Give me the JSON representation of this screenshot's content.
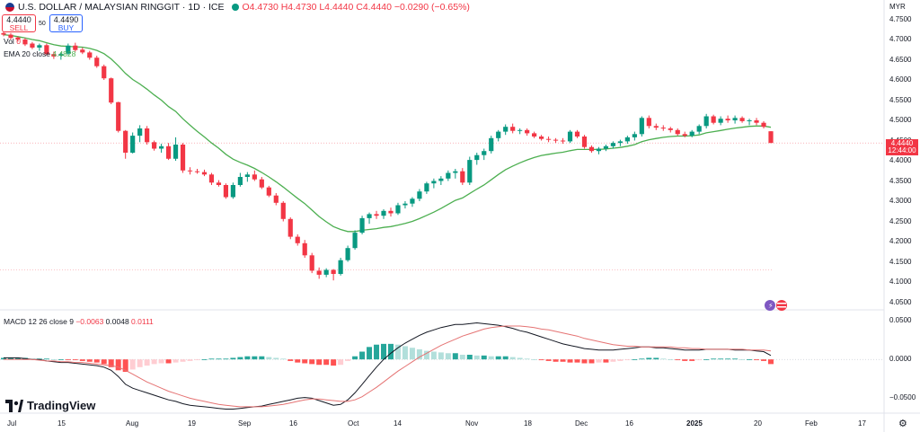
{
  "header": {
    "symbol_title": "U.S. DOLLAR / MALAYSIAN RINGGIT · 1D · ICE",
    "open": "O4.4730",
    "high": "H4.4730",
    "low": "L4.4440",
    "close": "C4.4440",
    "change": "−0.0290 (−0.65%)"
  },
  "trade": {
    "sell_price": "4.4440",
    "sell_label": "SELL",
    "spread": "50",
    "buy_price": "4.4490",
    "buy_label": "BUY"
  },
  "indicators": {
    "vol_label": "Vol",
    "vol_value": "0",
    "ema_label": "EMA 20 close",
    "ema_value": "4.4828",
    "macd_label": "MACD 12 26 close 9",
    "macd_hist": "−0.0063",
    "macd_line": "0.0048",
    "macd_signal": "0.0111"
  },
  "price_axis": {
    "currency": "MYR",
    "ticks": [
      "4.7500",
      "4.7000",
      "4.6500",
      "4.6000",
      "4.5500",
      "4.5000",
      "4.4500",
      "4.4000",
      "4.3500",
      "4.3000",
      "4.2500",
      "4.2000",
      "4.1500",
      "4.1000",
      "4.0500"
    ],
    "last_price": "4.4440",
    "countdown": "12:44:00"
  },
  "macd_axis": {
    "ticks": [
      "0.0500",
      "0.0000",
      "−0.0500"
    ]
  },
  "time_axis": {
    "labels": [
      "Jul",
      "15",
      "Aug",
      "19",
      "Sep",
      "16",
      "Oct",
      "14",
      "Nov",
      "18",
      "Dec",
      "16",
      "2025",
      "20",
      "Feb",
      "17"
    ]
  },
  "brand": {
    "name": "TradingView"
  },
  "colors": {
    "up": "#089981",
    "down": "#f23645",
    "ema": "#4caf50",
    "macd": "#131722",
    "signal": "#e57373"
  },
  "chart_data": {
    "type": "candlestick",
    "symbol": "USDMYR",
    "interval": "1D",
    "ylim": [
      4.04,
      4.76
    ],
    "candles": [
      [
        4.716,
        4.722,
        4.708,
        4.712
      ],
      [
        4.712,
        4.716,
        4.7,
        4.704
      ],
      [
        4.705,
        4.708,
        4.695,
        4.7
      ],
      [
        4.7,
        4.704,
        4.684,
        4.688
      ],
      [
        4.69,
        4.694,
        4.676,
        4.68
      ],
      [
        4.68,
        4.69,
        4.672,
        4.686
      ],
      [
        4.686,
        4.69,
        4.66,
        4.664
      ],
      [
        4.664,
        4.67,
        4.652,
        4.658
      ],
      [
        4.66,
        4.668,
        4.65,
        4.664
      ],
      [
        4.665,
        4.69,
        4.662,
        4.685
      ],
      [
        4.685,
        4.692,
        4.67,
        4.674
      ],
      [
        4.675,
        4.68,
        4.664,
        4.668
      ],
      [
        4.668,
        4.672,
        4.65,
        4.655
      ],
      [
        4.655,
        4.66,
        4.63,
        4.634
      ],
      [
        4.634,
        4.638,
        4.6,
        4.604
      ],
      [
        4.604,
        4.606,
        4.54,
        4.544
      ],
      [
        4.545,
        4.546,
        4.47,
        4.474
      ],
      [
        4.474,
        4.476,
        4.405,
        4.42
      ],
      [
        4.42,
        4.47,
        4.418,
        4.462
      ],
      [
        4.462,
        4.488,
        4.446,
        4.48
      ],
      [
        4.48,
        4.486,
        4.44,
        4.446
      ],
      [
        4.446,
        4.45,
        4.425,
        4.43
      ],
      [
        4.43,
        4.442,
        4.42,
        4.436
      ],
      [
        4.436,
        4.444,
        4.402,
        4.405
      ],
      [
        4.405,
        4.458,
        4.4,
        4.44
      ],
      [
        4.44,
        4.444,
        4.37,
        4.376
      ],
      [
        4.376,
        4.384,
        4.366,
        4.374
      ],
      [
        4.374,
        4.38,
        4.368,
        4.372
      ],
      [
        4.372,
        4.378,
        4.362,
        4.366
      ],
      [
        4.366,
        4.37,
        4.34,
        4.346
      ],
      [
        4.346,
        4.352,
        4.336,
        4.34
      ],
      [
        4.34,
        4.344,
        4.306,
        4.31
      ],
      [
        4.31,
        4.346,
        4.306,
        4.34
      ],
      [
        4.34,
        4.37,
        4.336,
        4.36
      ],
      [
        4.36,
        4.372,
        4.348,
        4.366
      ],
      [
        4.366,
        4.376,
        4.35,
        4.354
      ],
      [
        4.354,
        4.36,
        4.33,
        4.334
      ],
      [
        4.334,
        4.338,
        4.31,
        4.314
      ],
      [
        4.314,
        4.32,
        4.29,
        4.296
      ],
      [
        4.296,
        4.3,
        4.25,
        4.256
      ],
      [
        4.256,
        4.26,
        4.206,
        4.212
      ],
      [
        4.212,
        4.218,
        4.19,
        4.196
      ],
      [
        4.196,
        4.204,
        4.16,
        4.166
      ],
      [
        4.166,
        4.172,
        4.122,
        4.128
      ],
      [
        4.128,
        4.136,
        4.108,
        4.118
      ],
      [
        4.118,
        4.134,
        4.112,
        4.13
      ],
      [
        4.13,
        4.132,
        4.104,
        4.12
      ],
      [
        4.12,
        4.16,
        4.116,
        4.154
      ],
      [
        4.154,
        4.19,
        4.15,
        4.184
      ],
      [
        4.184,
        4.228,
        4.18,
        4.222
      ],
      [
        4.222,
        4.264,
        4.218,
        4.258
      ],
      [
        4.258,
        4.272,
        4.244,
        4.268
      ],
      [
        4.268,
        4.276,
        4.256,
        4.264
      ],
      [
        4.264,
        4.28,
        4.256,
        4.276
      ],
      [
        4.276,
        4.284,
        4.262,
        4.27
      ],
      [
        4.27,
        4.296,
        4.266,
        4.29
      ],
      [
        4.29,
        4.3,
        4.282,
        4.294
      ],
      [
        4.294,
        4.31,
        4.286,
        4.306
      ],
      [
        4.306,
        4.33,
        4.3,
        4.324
      ],
      [
        4.324,
        4.348,
        4.318,
        4.344
      ],
      [
        4.344,
        4.356,
        4.332,
        4.35
      ],
      [
        4.35,
        4.362,
        4.34,
        4.356
      ],
      [
        4.356,
        4.376,
        4.35,
        4.37
      ],
      [
        4.37,
        4.38,
        4.356,
        4.374
      ],
      [
        4.374,
        4.382,
        4.34,
        4.346
      ],
      [
        4.346,
        4.41,
        4.34,
        4.402
      ],
      [
        4.402,
        4.42,
        4.39,
        4.414
      ],
      [
        4.414,
        4.43,
        4.402,
        4.424
      ],
      [
        4.424,
        4.462,
        4.418,
        4.456
      ],
      [
        4.456,
        4.476,
        4.448,
        4.472
      ],
      [
        4.472,
        4.49,
        4.464,
        4.484
      ],
      [
        4.484,
        4.492,
        4.468,
        4.474
      ],
      [
        4.474,
        4.48,
        4.466,
        4.476
      ],
      [
        4.476,
        4.48,
        4.462,
        4.468
      ],
      [
        4.468,
        4.472,
        4.456,
        4.46
      ],
      [
        4.46,
        4.464,
        4.45,
        4.454
      ],
      [
        4.454,
        4.46,
        4.446,
        4.452
      ],
      [
        4.452,
        4.456,
        4.444,
        4.45
      ],
      [
        4.45,
        4.456,
        4.442,
        4.448
      ],
      [
        4.448,
        4.476,
        4.444,
        4.472
      ],
      [
        4.472,
        4.476,
        4.456,
        4.46
      ],
      [
        4.46,
        4.464,
        4.43,
        4.434
      ],
      [
        4.434,
        4.438,
        4.42,
        4.424
      ],
      [
        4.424,
        4.434,
        4.416,
        4.43
      ],
      [
        4.43,
        4.44,
        4.424,
        4.436
      ],
      [
        4.436,
        4.448,
        4.43,
        4.444
      ],
      [
        4.444,
        4.452,
        4.436,
        4.448
      ],
      [
        4.448,
        4.462,
        4.442,
        4.458
      ],
      [
        4.458,
        4.472,
        4.45,
        4.466
      ],
      [
        4.466,
        4.51,
        4.46,
        4.506
      ],
      [
        4.506,
        4.512,
        4.48,
        4.486
      ],
      [
        4.486,
        4.492,
        4.476,
        4.482
      ],
      [
        4.482,
        4.488,
        4.474,
        4.48
      ],
      [
        4.48,
        4.484,
        4.47,
        4.476
      ],
      [
        4.476,
        4.48,
        4.462,
        4.466
      ],
      [
        4.466,
        4.472,
        4.458,
        4.462
      ],
      [
        4.462,
        4.476,
        4.458,
        4.472
      ],
      [
        4.472,
        4.49,
        4.466,
        4.486
      ],
      [
        4.486,
        4.516,
        4.48,
        4.51
      ],
      [
        4.51,
        4.514,
        4.49,
        4.494
      ],
      [
        4.494,
        4.51,
        4.488,
        4.504
      ],
      [
        4.504,
        4.512,
        4.494,
        4.5
      ],
      [
        4.5,
        4.512,
        4.492,
        4.506
      ],
      [
        4.506,
        4.51,
        4.494,
        4.498
      ],
      [
        4.498,
        4.504,
        4.488,
        4.5
      ],
      [
        4.5,
        4.506,
        4.488,
        4.494
      ],
      [
        4.494,
        4.498,
        4.48,
        4.484
      ],
      [
        4.473,
        4.473,
        4.444,
        4.444
      ]
    ],
    "ema20": [
      4.712,
      4.71,
      4.707,
      4.704,
      4.7,
      4.697,
      4.692,
      4.687,
      4.684,
      4.683,
      4.682,
      4.681,
      4.678,
      4.673,
      4.665,
      4.652,
      4.635,
      4.616,
      4.601,
      4.59,
      4.577,
      4.563,
      4.55,
      4.534,
      4.522,
      4.504,
      4.488,
      4.473,
      4.459,
      4.444,
      4.431,
      4.416,
      4.404,
      4.396,
      4.389,
      4.381,
      4.371,
      4.36,
      4.348,
      4.335,
      4.321,
      4.307,
      4.294,
      4.278,
      4.262,
      4.249,
      4.237,
      4.23,
      4.225,
      4.225,
      4.228,
      4.23,
      4.232,
      4.235,
      4.237,
      4.241,
      4.245,
      4.25,
      4.257,
      4.265,
      4.273,
      4.282,
      4.292,
      4.302,
      4.308,
      4.319,
      4.33,
      4.34,
      4.353,
      4.366,
      4.378,
      4.387,
      4.395,
      4.402,
      4.408,
      4.413,
      4.416,
      4.419,
      4.421,
      4.425,
      4.428,
      4.428,
      4.428,
      4.428,
      4.429,
      4.431,
      4.433,
      4.436,
      4.44,
      4.447,
      4.452,
      4.455,
      4.458,
      4.46,
      4.461,
      4.461,
      4.462,
      4.464,
      4.469,
      4.472,
      4.475,
      4.478,
      4.481,
      4.483,
      4.485,
      4.486,
      4.486,
      4.483
    ],
    "macd_ylim": [
      -0.068,
      0.058
    ],
    "macd_hist": [
      0.002,
      0.002,
      0.002,
      0.002,
      0.001,
      0.001,
      0.001,
      0.0,
      0.0,
      -0.001,
      -0.001,
      -0.002,
      -0.003,
      -0.004,
      -0.006,
      -0.01,
      -0.014,
      -0.016,
      -0.013,
      -0.01,
      -0.008,
      -0.006,
      -0.005,
      -0.005,
      -0.004,
      -0.003,
      -0.002,
      -0.001,
      0.0,
      0.001,
      0.001,
      0.001,
      0.002,
      0.003,
      0.004,
      0.004,
      0.004,
      0.003,
      0.002,
      0.001,
      -0.002,
      -0.004,
      -0.005,
      -0.006,
      -0.007,
      -0.007,
      -0.008,
      -0.007,
      -0.002,
      0.004,
      0.01,
      0.016,
      0.019,
      0.02,
      0.02,
      0.019,
      0.017,
      0.015,
      0.013,
      0.011,
      0.01,
      0.009,
      0.008,
      0.008,
      0.006,
      0.006,
      0.005,
      0.005,
      0.004,
      0.004,
      0.004,
      0.003,
      0.002,
      0.001,
      0.0,
      -0.001,
      -0.002,
      -0.003,
      -0.003,
      -0.004,
      -0.004,
      -0.005,
      -0.005,
      -0.004,
      -0.004,
      -0.003,
      -0.002,
      -0.001,
      0.0,
      0.001,
      0.002,
      0.002,
      0.001,
      0.0,
      -0.001,
      -0.002,
      -0.002,
      -0.001,
      0.0,
      0.001,
      0.001,
      0.001,
      0.001,
      0.0,
      0.0,
      -0.001,
      -0.002,
      -0.006
    ],
    "macd_line": [
      0.002,
      0.002,
      0.002,
      0.001,
      0.0,
      0.0,
      -0.002,
      -0.003,
      -0.004,
      -0.004,
      -0.005,
      -0.006,
      -0.007,
      -0.008,
      -0.01,
      -0.014,
      -0.022,
      -0.032,
      -0.037,
      -0.04,
      -0.043,
      -0.046,
      -0.049,
      -0.052,
      -0.054,
      -0.057,
      -0.059,
      -0.06,
      -0.061,
      -0.062,
      -0.063,
      -0.064,
      -0.064,
      -0.063,
      -0.062,
      -0.061,
      -0.06,
      -0.058,
      -0.056,
      -0.054,
      -0.052,
      -0.05,
      -0.049,
      -0.05,
      -0.053,
      -0.056,
      -0.059,
      -0.058,
      -0.052,
      -0.043,
      -0.032,
      -0.021,
      -0.01,
      0.0,
      0.008,
      0.015,
      0.021,
      0.026,
      0.031,
      0.035,
      0.038,
      0.041,
      0.043,
      0.045,
      0.045,
      0.046,
      0.047,
      0.046,
      0.045,
      0.044,
      0.042,
      0.04,
      0.037,
      0.035,
      0.032,
      0.029,
      0.026,
      0.023,
      0.02,
      0.018,
      0.016,
      0.014,
      0.013,
      0.012,
      0.012,
      0.012,
      0.013,
      0.014,
      0.015,
      0.016,
      0.016,
      0.015,
      0.015,
      0.014,
      0.013,
      0.012,
      0.012,
      0.012,
      0.013,
      0.013,
      0.013,
      0.013,
      0.012,
      0.012,
      0.012,
      0.011,
      0.01,
      0.005
    ],
    "signal_line": [
      0.0,
      0.0,
      0.0,
      0.0,
      0.0,
      -0.001,
      -0.002,
      -0.002,
      -0.003,
      -0.003,
      -0.004,
      -0.004,
      -0.005,
      -0.006,
      -0.007,
      -0.008,
      -0.01,
      -0.014,
      -0.019,
      -0.024,
      -0.029,
      -0.033,
      -0.037,
      -0.041,
      -0.044,
      -0.047,
      -0.05,
      -0.052,
      -0.054,
      -0.056,
      -0.058,
      -0.059,
      -0.06,
      -0.061,
      -0.061,
      -0.061,
      -0.061,
      -0.06,
      -0.059,
      -0.058,
      -0.056,
      -0.054,
      -0.052,
      -0.051,
      -0.051,
      -0.052,
      -0.053,
      -0.054,
      -0.054,
      -0.052,
      -0.048,
      -0.042,
      -0.036,
      -0.029,
      -0.022,
      -0.015,
      -0.009,
      -0.003,
      0.003,
      0.008,
      0.013,
      0.018,
      0.022,
      0.026,
      0.03,
      0.033,
      0.036,
      0.039,
      0.041,
      0.042,
      0.043,
      0.043,
      0.043,
      0.042,
      0.041,
      0.039,
      0.038,
      0.036,
      0.034,
      0.032,
      0.03,
      0.027,
      0.025,
      0.023,
      0.021,
      0.019,
      0.018,
      0.017,
      0.017,
      0.016,
      0.016,
      0.016,
      0.016,
      0.016,
      0.015,
      0.015,
      0.014,
      0.014,
      0.013,
      0.013,
      0.013,
      0.013,
      0.013,
      0.013,
      0.012,
      0.012,
      0.012,
      0.011
    ]
  }
}
